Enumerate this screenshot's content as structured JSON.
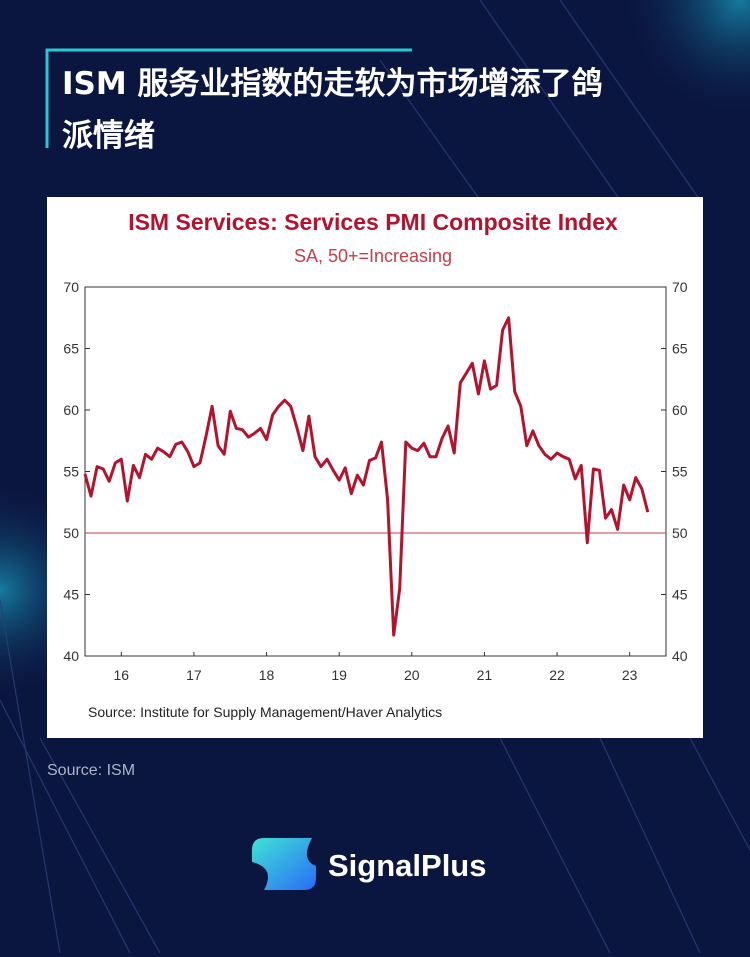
{
  "header": {
    "title_lines": [
      "ISM 服务业指数的走软为市场增添了鸽",
      "派情绪"
    ]
  },
  "chart_data": {
    "type": "line",
    "title": "ISM Services: Services PMI Composite Index",
    "subtitle": "SA, 50+=Increasing",
    "source": "Source:  Institute for Supply Management/Haver Analytics",
    "x": [
      16,
      16.083,
      16.167,
      16.25,
      16.333,
      16.417,
      16.5,
      16.583,
      16.667,
      16.75,
      16.833,
      16.917,
      17,
      17.083,
      17.167,
      17.25,
      17.333,
      17.417,
      17.5,
      17.583,
      17.667,
      17.75,
      17.833,
      17.917,
      18,
      18.083,
      18.167,
      18.25,
      18.333,
      18.417,
      18.5,
      18.583,
      18.667,
      18.75,
      18.833,
      18.917,
      19,
      19.083,
      19.167,
      19.25,
      19.333,
      19.417,
      19.5,
      19.583,
      19.667,
      19.75,
      19.833,
      19.917,
      20,
      20.083,
      20.167,
      20.25,
      20.333,
      20.417,
      20.5,
      20.583,
      20.667,
      20.75,
      20.833,
      20.917,
      21,
      21.083,
      21.167,
      21.25,
      21.333,
      21.417,
      21.5,
      21.583,
      21.667,
      21.75,
      21.833,
      21.917,
      22,
      22.083,
      22.167,
      22.25,
      22.333,
      22.417,
      22.5,
      22.583,
      22.667,
      22.75,
      22.833,
      22.917,
      23,
      23.083,
      23.167,
      23.25,
      23.333,
      23.417,
      23.5,
      23.583,
      23.667,
      23.75
    ],
    "series": [
      {
        "name": "ISM Services PMI",
        "color": "#b5122e",
        "values": [
          54.8,
          53.0,
          55.4,
          55.2,
          54.2,
          55.7,
          56.0,
          52.6,
          55.5,
          54.5,
          56.4,
          56.0,
          56.9,
          56.6,
          56.2,
          57.2,
          57.4,
          56.6,
          55.4,
          55.7,
          57.9,
          60.3,
          57.1,
          56.4,
          59.9,
          58.5,
          58.4,
          57.8,
          58.1,
          58.5,
          57.6,
          59.6,
          60.3,
          60.8,
          60.3,
          58.6,
          56.7,
          59.5,
          56.2,
          55.4,
          56.0,
          55.1,
          54.3,
          55.3,
          53.2,
          54.7,
          53.9,
          55.9,
          56.1,
          57.4,
          52.7,
          41.7,
          45.5,
          57.4,
          56.9,
          56.7,
          57.3,
          56.2,
          56.2,
          57.7,
          58.7,
          56.5,
          62.2,
          63.0,
          63.8,
          61.3,
          64.0,
          61.7,
          62.0,
          66.5,
          67.5,
          61.5,
          60.3,
          57.1,
          58.3,
          57.1,
          56.4,
          56.0,
          56.5,
          56.2,
          56.0,
          54.4,
          55.5,
          49.2,
          55.2,
          55.1,
          51.2,
          51.9,
          50.3,
          53.9,
          52.7,
          54.5,
          53.6,
          51.7
        ]
      }
    ],
    "xlim": [
      16,
      24
    ],
    "xticks": [
      {
        "value": 16.5,
        "label": "16"
      },
      {
        "value": 17.5,
        "label": "17"
      },
      {
        "value": 18.5,
        "label": "18"
      },
      {
        "value": 19.5,
        "label": "19"
      },
      {
        "value": 20.5,
        "label": "20"
      },
      {
        "value": 21.5,
        "label": "21"
      },
      {
        "value": 22.5,
        "label": "22"
      },
      {
        "value": 23.5,
        "label": "23"
      }
    ],
    "ylim": [
      40,
      70
    ],
    "yticks": [
      40,
      45,
      50,
      55,
      60,
      65,
      70
    ],
    "y2lim": [
      40,
      70
    ],
    "y2ticks": [
      40,
      45,
      50,
      55,
      60,
      65,
      70
    ],
    "reference_line": {
      "value": 50,
      "color": "#c83c4a"
    }
  },
  "footer": {
    "source": "Source: ISM",
    "brand": "SignalPlus"
  }
}
